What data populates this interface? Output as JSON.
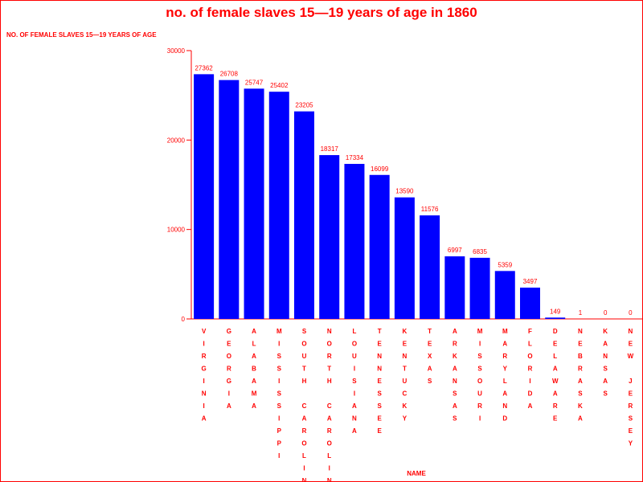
{
  "chart_data": {
    "type": "bar",
    "title": "no. of female slaves 15—19 years of age in 1860",
    "ylabel": "NO. OF FEMALE SLAVES 15—19 YEARS OF AGE",
    "xlabel": "NAME",
    "ylim": [
      0,
      30000
    ],
    "yticks": [
      0,
      10000,
      20000,
      30000
    ],
    "grid": false,
    "categories": [
      "VIRGINIA",
      "GEORGIA",
      "ALABAMA",
      "MISSISSIPPI",
      "SOUTH CAROLINA",
      "NORTH CAROLINA",
      "LOUISIANA",
      "TENNESSEE",
      "KENTUCKY",
      "TEXAS",
      "ARKANSAS",
      "MISSOURI",
      "MARYLAND",
      "FLORIDA",
      "DELAWARE",
      "NEBRASKA",
      "KANSAS",
      "NEW JERSEY"
    ],
    "values": [
      27362,
      26708,
      25747,
      25402,
      23205,
      18317,
      17334,
      16099,
      13590,
      11576,
      6997,
      6835,
      5359,
      3497,
      149,
      1,
      0,
      0
    ],
    "colors": {
      "bar": "#0000ff",
      "text": "#ff0000",
      "axis": "#ff0000"
    }
  }
}
